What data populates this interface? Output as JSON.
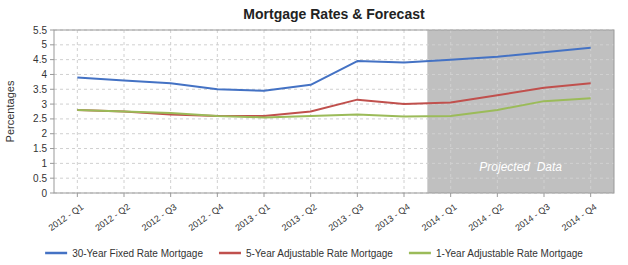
{
  "chart_data": {
    "type": "line",
    "title": "Mortgage Rates & Forecast",
    "y_label": "Percentages",
    "categories": [
      "2012 - Q1",
      "2012 - Q2",
      "2012 - Q3",
      "2012 - Q4",
      "2013 - Q1",
      "2013 - Q2",
      "2013 - Q3",
      "2013 - Q4",
      "2014 - Q1",
      "2014 - Q2",
      "2014 - Q3",
      "2014 - Q4"
    ],
    "series": [
      {
        "name": "30-Year Fixed Rate Mortgage",
        "color": "#4472C4",
        "values": [
          3.9,
          3.8,
          3.7,
          3.5,
          3.45,
          3.65,
          4.45,
          4.4,
          4.5,
          4.6,
          4.75,
          4.9
        ]
      },
      {
        "name": "5-Year Adjustable Rate Mortgage",
        "color": "#C0504D",
        "values": [
          2.8,
          2.75,
          2.65,
          2.6,
          2.6,
          2.75,
          3.15,
          3.0,
          3.05,
          3.3,
          3.55,
          3.7
        ]
      },
      {
        "name": "1-Year Adjustable Rate Mortgage",
        "color": "#9BBB59",
        "values": [
          2.8,
          2.75,
          2.7,
          2.6,
          2.55,
          2.6,
          2.65,
          2.58,
          2.6,
          2.8,
          3.1,
          3.2
        ]
      }
    ],
    "ylim": [
      0,
      5.5
    ],
    "yticks": [
      0,
      0.5,
      1,
      1.5,
      2,
      2.5,
      3,
      3.5,
      4,
      4.5,
      5,
      5.5
    ],
    "grid": true,
    "legend": "bottom",
    "annotations": [
      {
        "text": "Projected  Data",
        "x_start": "2014 - Q1",
        "x_end": "2014 - Q4",
        "color": "#C0C0C0"
      }
    ]
  }
}
